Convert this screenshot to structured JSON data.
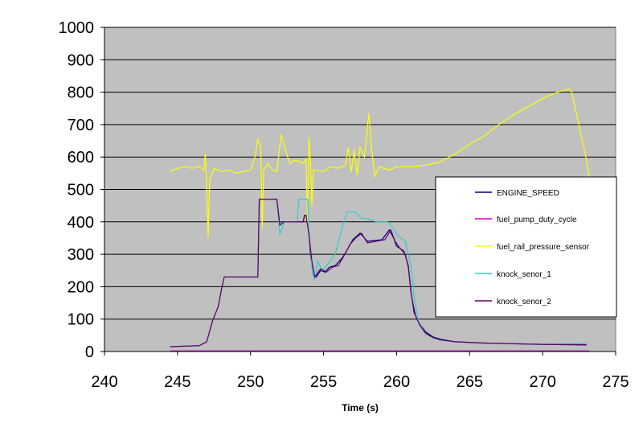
{
  "chart_data": {
    "type": "line",
    "title": "",
    "xlabel": "Time (s)",
    "ylabel": "",
    "xlim": [
      240,
      275
    ],
    "ylim": [
      0,
      1000
    ],
    "xticks": [
      "240",
      "245",
      "250",
      "255",
      "260",
      "265",
      "270",
      "275"
    ],
    "yticks": [
      "0",
      "100",
      "200",
      "300",
      "400",
      "500",
      "600",
      "700",
      "800",
      "900",
      "1000"
    ],
    "grid": "horizontal",
    "legend_position": "right",
    "plot_background": "#c0c0c0",
    "series": [
      {
        "name": "ENGINE_SPEED",
        "color": "#000080",
        "points": [
          [
            244.5,
            15
          ],
          [
            246.5,
            18
          ],
          [
            247,
            30
          ],
          [
            247.4,
            95
          ],
          [
            247.8,
            140
          ],
          [
            248,
            190
          ],
          [
            248.2,
            230
          ],
          [
            250.5,
            230
          ],
          [
            250.6,
            470
          ],
          [
            251.8,
            470
          ],
          [
            252,
            390
          ],
          [
            252.3,
            400
          ],
          [
            253.6,
            400
          ],
          [
            253.7,
            420
          ],
          [
            253.8,
            420
          ],
          [
            254,
            370
          ],
          [
            254.1,
            300
          ],
          [
            254.3,
            235
          ],
          [
            254.5,
            230
          ],
          [
            254.8,
            250
          ],
          [
            255.1,
            245
          ],
          [
            255.4,
            260
          ],
          [
            255.8,
            265
          ],
          [
            256.3,
            290
          ],
          [
            256.7,
            320
          ],
          [
            257,
            345
          ],
          [
            257.5,
            365
          ],
          [
            258,
            340
          ],
          [
            259,
            345
          ],
          [
            259.5,
            375
          ],
          [
            259.8,
            350
          ],
          [
            260,
            325
          ],
          [
            260.5,
            310
          ],
          [
            260.8,
            265
          ],
          [
            261,
            180
          ],
          [
            261.2,
            120
          ],
          [
            261.5,
            90
          ],
          [
            262,
            60
          ],
          [
            262.5,
            45
          ],
          [
            263,
            38
          ],
          [
            264,
            30
          ],
          [
            266,
            26
          ],
          [
            270,
            22
          ],
          [
            273,
            20
          ]
        ]
      },
      {
        "name": "fuel_pump_duty_cycle",
        "color": "#cc00cc",
        "points": [
          [
            244.5,
            2
          ],
          [
            273.2,
            2
          ]
        ]
      },
      {
        "name": "fuel_rail_pressure_sensor",
        "color": "#ffff00",
        "points": [
          [
            244.5,
            555
          ],
          [
            245,
            565
          ],
          [
            245.5,
            570
          ],
          [
            246,
            565
          ],
          [
            246.5,
            570
          ],
          [
            246.8,
            560
          ],
          [
            246.9,
            610
          ],
          [
            247,
            500
          ],
          [
            247.1,
            350
          ],
          [
            247.2,
            530
          ],
          [
            247.5,
            565
          ],
          [
            248,
            555
          ],
          [
            248.5,
            560
          ],
          [
            249,
            550
          ],
          [
            249.5,
            555
          ],
          [
            250,
            560
          ],
          [
            250.3,
            600
          ],
          [
            250.5,
            655
          ],
          [
            250.7,
            630
          ],
          [
            250.8,
            380
          ],
          [
            250.9,
            560
          ],
          [
            251.2,
            580
          ],
          [
            251.5,
            560
          ],
          [
            251.8,
            555
          ],
          [
            252.1,
            670
          ],
          [
            252.4,
            620
          ],
          [
            252.7,
            580
          ],
          [
            253,
            590
          ],
          [
            253.4,
            585
          ],
          [
            253.6,
            580
          ],
          [
            253.8,
            595
          ],
          [
            253.9,
            380
          ],
          [
            254,
            660
          ],
          [
            254.1,
            590
          ],
          [
            254.2,
            450
          ],
          [
            254.3,
            560
          ],
          [
            255,
            555
          ],
          [
            255.5,
            570
          ],
          [
            256,
            565
          ],
          [
            256.5,
            575
          ],
          [
            256.7,
            630
          ],
          [
            256.9,
            555
          ],
          [
            257.1,
            620
          ],
          [
            257.3,
            545
          ],
          [
            257.5,
            630
          ],
          [
            257.8,
            600
          ],
          [
            258.1,
            735
          ],
          [
            258.3,
            620
          ],
          [
            258.5,
            540
          ],
          [
            258.8,
            570
          ],
          [
            259.5,
            560
          ],
          [
            260,
            570
          ],
          [
            261,
            570
          ],
          [
            262,
            575
          ],
          [
            263,
            585
          ],
          [
            264,
            610
          ],
          [
            265,
            640
          ],
          [
            266,
            665
          ],
          [
            267,
            700
          ],
          [
            268,
            730
          ],
          [
            269,
            755
          ],
          [
            270,
            780
          ],
          [
            271,
            800
          ],
          [
            271.8,
            810
          ],
          [
            272,
            800
          ],
          [
            273,
            590
          ],
          [
            273.2,
            540
          ]
        ]
      },
      {
        "name": "knock_senor_1",
        "color": "#33cccc",
        "points": [
          [
            244.5,
            15
          ],
          [
            246.5,
            18
          ],
          [
            247,
            30
          ],
          [
            247.4,
            95
          ],
          [
            247.8,
            140
          ],
          [
            248,
            190
          ],
          [
            248.2,
            230
          ],
          [
            250.5,
            230
          ],
          [
            250.6,
            470
          ],
          [
            251.8,
            470
          ],
          [
            252,
            360
          ],
          [
            252.3,
            400
          ],
          [
            253.2,
            400
          ],
          [
            253.3,
            470
          ],
          [
            253.9,
            470
          ],
          [
            254,
            370
          ],
          [
            254.2,
            260
          ],
          [
            254.4,
            220
          ],
          [
            254.6,
            280
          ],
          [
            254.9,
            250
          ],
          [
            255.3,
            270
          ],
          [
            255.8,
            300
          ],
          [
            256.2,
            370
          ],
          [
            256.6,
            430
          ],
          [
            257.2,
            430
          ],
          [
            257.6,
            410
          ],
          [
            258,
            410
          ],
          [
            258.6,
            400
          ],
          [
            259.4,
            400
          ],
          [
            259.8,
            380
          ],
          [
            260,
            360
          ],
          [
            260.6,
            340
          ],
          [
            261,
            260
          ],
          [
            261.2,
            170
          ],
          [
            261.5,
            90
          ],
          [
            262,
            55
          ],
          [
            262.5,
            42
          ],
          [
            263,
            35
          ],
          [
            264,
            30
          ],
          [
            266,
            26
          ],
          [
            270,
            22
          ],
          [
            273,
            24
          ]
        ]
      },
      {
        "name": "knock_senor_2",
        "color": "#660066",
        "points": [
          [
            244.5,
            15
          ],
          [
            246.5,
            18
          ],
          [
            247,
            30
          ],
          [
            247.4,
            95
          ],
          [
            247.8,
            140
          ],
          [
            248,
            190
          ],
          [
            248.2,
            230
          ],
          [
            250.5,
            230
          ],
          [
            250.6,
            470
          ],
          [
            251.8,
            470
          ],
          [
            252,
            390
          ],
          [
            252.3,
            400
          ],
          [
            253.6,
            400
          ],
          [
            253.7,
            420
          ],
          [
            253.8,
            420
          ],
          [
            254,
            360
          ],
          [
            254.2,
            280
          ],
          [
            254.4,
            230
          ],
          [
            254.8,
            255
          ],
          [
            255.2,
            245
          ],
          [
            255.6,
            260
          ],
          [
            256,
            265
          ],
          [
            256.4,
            295
          ],
          [
            256.8,
            330
          ],
          [
            257.2,
            350
          ],
          [
            257.6,
            365
          ],
          [
            258,
            335
          ],
          [
            259.2,
            345
          ],
          [
            259.6,
            375
          ],
          [
            259.9,
            340
          ],
          [
            260.2,
            320
          ],
          [
            260.6,
            300
          ],
          [
            260.8,
            260
          ],
          [
            261,
            175
          ],
          [
            261.3,
            110
          ],
          [
            261.6,
            80
          ],
          [
            262,
            55
          ],
          [
            262.5,
            43
          ],
          [
            263,
            36
          ],
          [
            264,
            30
          ],
          [
            266,
            26
          ],
          [
            270,
            22
          ],
          [
            273,
            21
          ]
        ]
      }
    ]
  }
}
